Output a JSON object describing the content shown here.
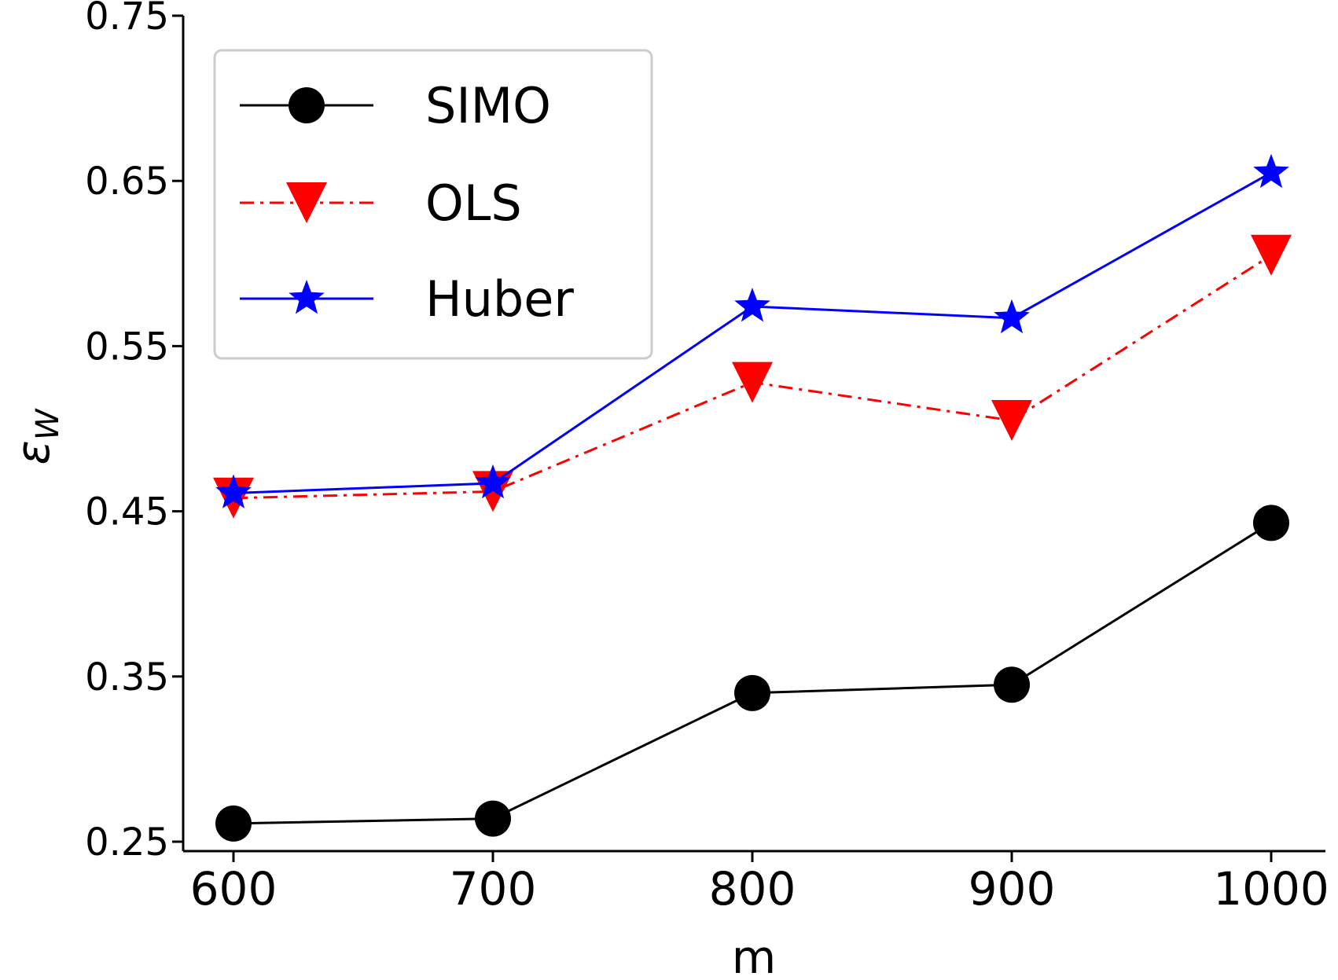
{
  "chart_data": {
    "type": "line",
    "title": "",
    "xlabel": "m",
    "ylabel_main": "ε",
    "ylabel_sub": "W",
    "x": [
      600,
      700,
      800,
      900,
      1000
    ],
    "x_tick_labels": [
      "600",
      "700",
      "800",
      "900",
      "1000"
    ],
    "y_ticks": [
      0.25,
      0.35,
      0.45,
      0.55,
      0.65,
      0.75
    ],
    "y_tick_labels": [
      "0.25",
      "0.35",
      "0.45",
      "0.55",
      "0.65",
      "0.75"
    ],
    "xlim": [
      580,
      1020
    ],
    "ylim": [
      0.25,
      0.75
    ],
    "grid": false,
    "legend_position": "top-left",
    "series": [
      {
        "name": "SIMO",
        "values": [
          0.261,
          0.264,
          0.34,
          0.345,
          0.443
        ],
        "color": "#000000",
        "marker": "circle",
        "linestyle": "solid"
      },
      {
        "name": "OLS",
        "values": [
          0.458,
          0.462,
          0.528,
          0.505,
          0.605
        ],
        "color": "#ff0000",
        "marker": "triangle-down",
        "linestyle": "dashdot"
      },
      {
        "name": "Huber",
        "values": [
          0.461,
          0.467,
          0.574,
          0.567,
          0.655
        ],
        "color": "#0000ff",
        "marker": "star",
        "linestyle": "solid"
      }
    ]
  }
}
